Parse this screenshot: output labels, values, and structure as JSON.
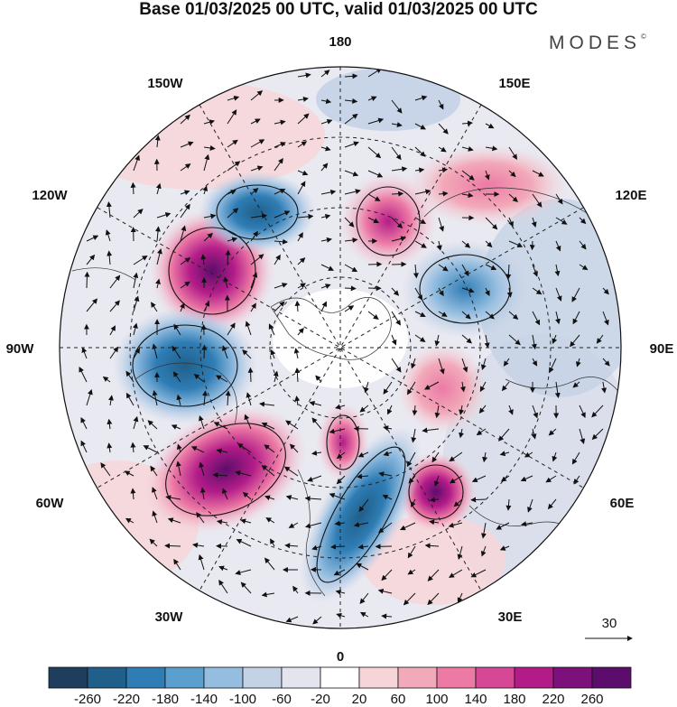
{
  "title": "Base 01/03/2025 00 UTC, valid 01/03/2025 00 UTC",
  "brand": "MODES",
  "brand_mark": "©",
  "longitude_labels": {
    "top": "180",
    "bottom": "0",
    "left": "90W",
    "right": "90E",
    "upper_left_1": "150W",
    "upper_left_2": "120W",
    "upper_right_1": "150E",
    "upper_right_2": "120E",
    "lower_left_1": "60W",
    "lower_left_2": "30W",
    "lower_right_1": "60E",
    "lower_right_2": "30E"
  },
  "vector_reference": "30",
  "colorbar": {
    "ticks": [
      "-260",
      "-220",
      "-180",
      "-140",
      "-100",
      "-60",
      "-20",
      "20",
      "60",
      "100",
      "140",
      "180",
      "220",
      "260"
    ],
    "colors": [
      "#1f3d5c",
      "#1f5f8a",
      "#2f7db5",
      "#5b9fcf",
      "#94bde0",
      "#c4d2e6",
      "#e4e4ef",
      "#ffffff",
      "#f7d4d8",
      "#f2a9b9",
      "#ec7aa5",
      "#d64796",
      "#b31c88",
      "#7d117b",
      "#5c0d6b"
    ]
  }
}
